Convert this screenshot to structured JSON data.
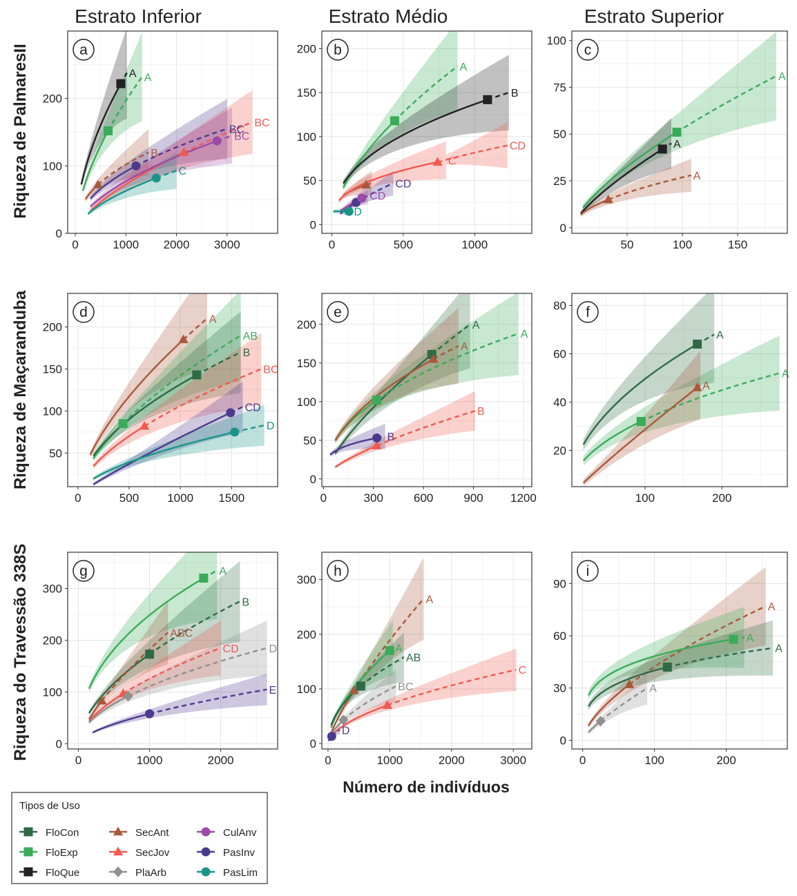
{
  "column_titles": [
    "Estrato Inferior",
    "Estrato Médio",
    "Estrato Superior"
  ],
  "row_titles": [
    "Riqueza de PalmaresII",
    "Riqueza de Maçaranduba",
    "Riqueza do Travessão 338S"
  ],
  "x_axis_title": "Número de indivíduos",
  "legend": {
    "title": "Tipos de Uso",
    "items": [
      {
        "name": "FloCon",
        "color": "#2e6b45",
        "shape": "square"
      },
      {
        "name": "FloExp",
        "color": "#3aab58",
        "shape": "square"
      },
      {
        "name": "FloQue",
        "color": "#222222",
        "shape": "square"
      },
      {
        "name": "SecAnt",
        "color": "#a8583c",
        "shape": "triangle"
      },
      {
        "name": "SecJov",
        "color": "#ef5a50",
        "shape": "triangle"
      },
      {
        "name": "PlaArb",
        "color": "#909090",
        "shape": "diamond"
      },
      {
        "name": "CulAnv",
        "color": "#9c4aa7",
        "shape": "circle"
      },
      {
        "name": "PasInv",
        "color": "#4b3a8e",
        "shape": "circle"
      },
      {
        "name": "PasLim",
        "color": "#1a9489",
        "shape": "circle"
      }
    ]
  },
  "chart_data": [
    {
      "panel": "a",
      "type": "line",
      "xlim": [
        -150,
        4000
      ],
      "ylim": [
        0,
        300
      ],
      "xticks": [
        0,
        1000,
        2000,
        3000
      ],
      "yticks": [
        0,
        100,
        200
      ],
      "series": [
        {
          "name": "FloQue",
          "letter": "A",
          "n_obs": 900,
          "s_obs": 222,
          "n_min": 120,
          "n_max": 1020,
          "s_max": 238
        },
        {
          "name": "FloExp",
          "letter": "A",
          "n_obs": 650,
          "s_obs": 152,
          "n_min": 150,
          "n_max": 1320,
          "s_max": 232
        },
        {
          "name": "SecAnt",
          "letter": "B",
          "n_obs": 450,
          "s_obs": 72,
          "n_min": 200,
          "n_max": 1450,
          "s_max": 120
        },
        {
          "name": "PasInv",
          "letter": "BC",
          "n_obs": 1200,
          "s_obs": 100,
          "n_min": 300,
          "n_max": 3000,
          "s_max": 155
        },
        {
          "name": "SecJov",
          "letter": "BC",
          "n_obs": 2150,
          "s_obs": 120,
          "n_min": 300,
          "n_max": 3500,
          "s_max": 165
        },
        {
          "name": "CulAnv",
          "letter": "BC",
          "n_obs": 2800,
          "s_obs": 137,
          "n_min": 300,
          "n_max": 3100,
          "s_max": 145
        },
        {
          "name": "PasLim",
          "letter": "C",
          "n_obs": 1600,
          "s_obs": 82,
          "n_min": 250,
          "n_max": 2000,
          "s_max": 93
        }
      ]
    },
    {
      "panel": "b",
      "type": "line",
      "xlim": [
        -70,
        1400
      ],
      "ylim": [
        -10,
        220
      ],
      "xticks": [
        0,
        500,
        1000
      ],
      "yticks": [
        0,
        50,
        100,
        150,
        200
      ],
      "series": [
        {
          "name": "FloExp",
          "letter": "A",
          "n_obs": 440,
          "s_obs": 118,
          "n_min": 80,
          "n_max": 880,
          "s_max": 180
        },
        {
          "name": "FloQue",
          "letter": "B",
          "n_obs": 1090,
          "s_obs": 142,
          "n_min": 80,
          "n_max": 1240,
          "s_max": 150
        },
        {
          "name": "SecAnt",
          "letter": "",
          "n_obs": 240,
          "s_obs": 45,
          "n_min": 80,
          "n_max": 280,
          "s_max": 47
        },
        {
          "name": "SecJov",
          "letter": "C",
          "n_obs": 740,
          "s_obs": 71,
          "n_min": 50,
          "n_max": 800,
          "s_max": 73
        },
        {
          "name": "SecJov",
          "letter": "CD",
          "n_obs": 740,
          "s_obs": 71,
          "n_min": 800,
          "n_max": 1230,
          "s_max": 90
        },
        {
          "name": "PasInv",
          "letter": "CD",
          "n_obs": 170,
          "s_obs": 25,
          "n_min": 60,
          "n_max": 430,
          "s_max": 47
        },
        {
          "name": "CulAnv",
          "letter": "CD",
          "n_obs": 210,
          "s_obs": 30,
          "n_min": 60,
          "n_max": 250,
          "s_max": 33
        },
        {
          "name": "PasLim",
          "letter": "D",
          "n_obs": 120,
          "s_obs": 15,
          "n_min": 10,
          "n_max": 140,
          "s_max": 15
        }
      ]
    },
    {
      "panel": "c",
      "type": "line",
      "xlim": [
        0,
        195
      ],
      "ylim": [
        -3,
        105
      ],
      "xticks": [
        50,
        100,
        150
      ],
      "yticks": [
        0,
        25,
        50,
        75,
        100
      ],
      "series": [
        {
          "name": "FloExp",
          "letter": "A",
          "n_obs": 95,
          "s_obs": 51,
          "n_min": 10,
          "n_max": 185,
          "s_max": 81
        },
        {
          "name": "FloQue",
          "letter": "A",
          "n_obs": 82,
          "s_obs": 42,
          "n_min": 8,
          "n_max": 90,
          "s_max": 45
        },
        {
          "name": "SecAnt",
          "letter": "A",
          "n_obs": 33,
          "s_obs": 15,
          "n_min": 8,
          "n_max": 108,
          "s_max": 28
        }
      ]
    },
    {
      "panel": "d",
      "type": "line",
      "xlim": [
        -100,
        1950
      ],
      "ylim": [
        10,
        240
      ],
      "xticks": [
        0,
        500,
        1000,
        1500
      ],
      "yticks": [
        50,
        100,
        150,
        200
      ],
      "series": [
        {
          "name": "SecAnt",
          "letter": "A",
          "n_obs": 1030,
          "s_obs": 185,
          "n_min": 120,
          "n_max": 1260,
          "s_max": 210
        },
        {
          "name": "FloExp",
          "letter": "AB",
          "n_obs": 440,
          "s_obs": 85,
          "n_min": 150,
          "n_max": 1590,
          "s_max": 190
        },
        {
          "name": "FloCon",
          "letter": "B",
          "n_obs": 1160,
          "s_obs": 143,
          "n_min": 150,
          "n_max": 1590,
          "s_max": 170
        },
        {
          "name": "SecJov",
          "letter": "BC",
          "n_obs": 650,
          "s_obs": 82,
          "n_min": 150,
          "n_max": 1790,
          "s_max": 150
        },
        {
          "name": "PasInv",
          "letter": "CD",
          "n_obs": 1490,
          "s_obs": 98,
          "n_min": 150,
          "n_max": 1610,
          "s_max": 105
        },
        {
          "name": "PasLim",
          "letter": "D",
          "n_obs": 1530,
          "s_obs": 75,
          "n_min": 150,
          "n_max": 1820,
          "s_max": 83
        }
      ]
    },
    {
      "panel": "e",
      "type": "line",
      "xlim": [
        -10,
        1250
      ],
      "ylim": [
        -10,
        240
      ],
      "xticks": [
        0,
        300,
        600,
        900,
        1200
      ],
      "yticks": [
        0,
        50,
        100,
        150,
        200
      ],
      "series": [
        {
          "name": "FloCon",
          "letter": "A",
          "n_obs": 650,
          "s_obs": 161,
          "n_min": 70,
          "n_max": 880,
          "s_max": 200
        },
        {
          "name": "FloExp",
          "letter": "A",
          "n_obs": 320,
          "s_obs": 102,
          "n_min": 70,
          "n_max": 1170,
          "s_max": 188
        },
        {
          "name": "SecAnt",
          "letter": "A",
          "n_obs": 660,
          "s_obs": 155,
          "n_min": 70,
          "n_max": 810,
          "s_max": 172
        },
        {
          "name": "SecJov",
          "letter": "B",
          "n_obs": 320,
          "s_obs": 43,
          "n_min": 70,
          "n_max": 910,
          "s_max": 88
        },
        {
          "name": "PasInv",
          "letter": "B",
          "n_obs": 320,
          "s_obs": 53,
          "n_min": 40,
          "n_max": 370,
          "s_max": 55
        }
      ]
    },
    {
      "panel": "f",
      "type": "line",
      "xlim": [
        5,
        285
      ],
      "ylim": [
        5,
        85
      ],
      "xticks": [
        100,
        200
      ],
      "yticks": [
        20,
        40,
        60,
        80
      ],
      "series": [
        {
          "name": "FloCon",
          "letter": "A",
          "n_obs": 168,
          "s_obs": 64,
          "n_min": 20,
          "n_max": 190,
          "s_max": 68
        },
        {
          "name": "FloExp",
          "letter": "A",
          "n_obs": 95,
          "s_obs": 32,
          "n_min": 20,
          "n_max": 275,
          "s_max": 52
        },
        {
          "name": "SecAnt",
          "letter": "A",
          "n_obs": 168,
          "s_obs": 46,
          "n_min": 20,
          "n_max": 172,
          "s_max": 47
        }
      ]
    },
    {
      "panel": "g",
      "type": "line",
      "xlim": [
        -150,
        2800
      ],
      "ylim": [
        -10,
        370
      ],
      "xticks": [
        0,
        1000,
        2000
      ],
      "yticks": [
        0,
        100,
        200,
        300
      ],
      "series": [
        {
          "name": "FloExp",
          "letter": "A",
          "n_obs": 1760,
          "s_obs": 320,
          "n_min": 150,
          "n_max": 1950,
          "s_max": 335
        },
        {
          "name": "FloCon",
          "letter": "B",
          "n_obs": 1000,
          "s_obs": 173,
          "n_min": 150,
          "n_max": 2270,
          "s_max": 275
        },
        {
          "name": "SecAnt",
          "letter": "ABC",
          "n_obs": 330,
          "s_obs": 83,
          "n_min": 150,
          "n_max": 1260,
          "s_max": 215
        },
        {
          "name": "SecJov",
          "letter": "CD",
          "n_obs": 630,
          "s_obs": 97,
          "n_min": 150,
          "n_max": 2000,
          "s_max": 185
        },
        {
          "name": "PlaArb",
          "letter": "D",
          "n_obs": 700,
          "s_obs": 92,
          "n_min": 150,
          "n_max": 2650,
          "s_max": 185
        },
        {
          "name": "PasInv",
          "letter": "E",
          "n_obs": 1000,
          "s_obs": 58,
          "n_min": 200,
          "n_max": 2650,
          "s_max": 105
        }
      ]
    },
    {
      "panel": "h",
      "type": "line",
      "xlim": [
        -100,
        3300
      ],
      "ylim": [
        -10,
        350
      ],
      "xticks": [
        0,
        1000,
        2000,
        3000
      ],
      "yticks": [
        0,
        100,
        200,
        300
      ],
      "series": [
        {
          "name": "SecAnt",
          "letter": "A",
          "n_obs": 420,
          "s_obs": 97,
          "n_min": 50,
          "n_max": 1550,
          "s_max": 265
        },
        {
          "name": "FloExp",
          "letter": "A",
          "n_obs": 1000,
          "s_obs": 170,
          "n_min": 50,
          "n_max": 1050,
          "s_max": 175
        },
        {
          "name": "FloCon",
          "letter": "AB",
          "n_obs": 530,
          "s_obs": 105,
          "n_min": 50,
          "n_max": 1230,
          "s_max": 158
        },
        {
          "name": "PlaArb",
          "letter": "BC",
          "n_obs": 250,
          "s_obs": 43,
          "n_min": 50,
          "n_max": 1100,
          "s_max": 105
        },
        {
          "name": "SecJov",
          "letter": "C",
          "n_obs": 960,
          "s_obs": 70,
          "n_min": 50,
          "n_max": 3050,
          "s_max": 135
        },
        {
          "name": "PasInv",
          "letter": "D",
          "n_obs": 60,
          "s_obs": 13,
          "n_min": 10,
          "n_max": 190,
          "s_max": 25
        }
      ]
    },
    {
      "panel": "i",
      "type": "line",
      "xlim": [
        -15,
        285
      ],
      "ylim": [
        -5,
        108
      ],
      "xticks": [
        0,
        100,
        200
      ],
      "yticks": [
        0,
        30,
        60,
        90
      ],
      "series": [
        {
          "name": "SecAnt",
          "letter": "A",
          "n_obs": 65,
          "s_obs": 32,
          "n_min": 8,
          "n_max": 255,
          "s_max": 77
        },
        {
          "name": "FloExp",
          "letter": "A",
          "n_obs": 210,
          "s_obs": 58,
          "n_min": 8,
          "n_max": 225,
          "s_max": 59
        },
        {
          "name": "FloCon",
          "letter": "A",
          "n_obs": 118,
          "s_obs": 42,
          "n_min": 8,
          "n_max": 265,
          "s_max": 53
        },
        {
          "name": "PlaArb",
          "letter": "A",
          "n_obs": 25,
          "s_obs": 11,
          "n_min": 8,
          "n_max": 90,
          "s_max": 30
        }
      ]
    }
  ]
}
